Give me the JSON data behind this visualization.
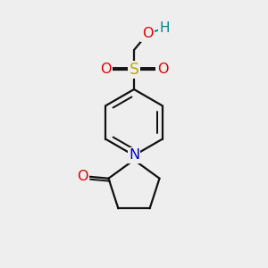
{
  "bg_color": "#eeeeee",
  "bond_color": "#111111",
  "bond_width": 1.6,
  "atom_colors": {
    "O": "#dd0000",
    "S": "#bbaa00",
    "N": "#0000cc",
    "H": "#008888",
    "C": "#111111"
  },
  "font_size": 11.5,
  "figsize": [
    3.0,
    3.0
  ],
  "dpi": 100
}
